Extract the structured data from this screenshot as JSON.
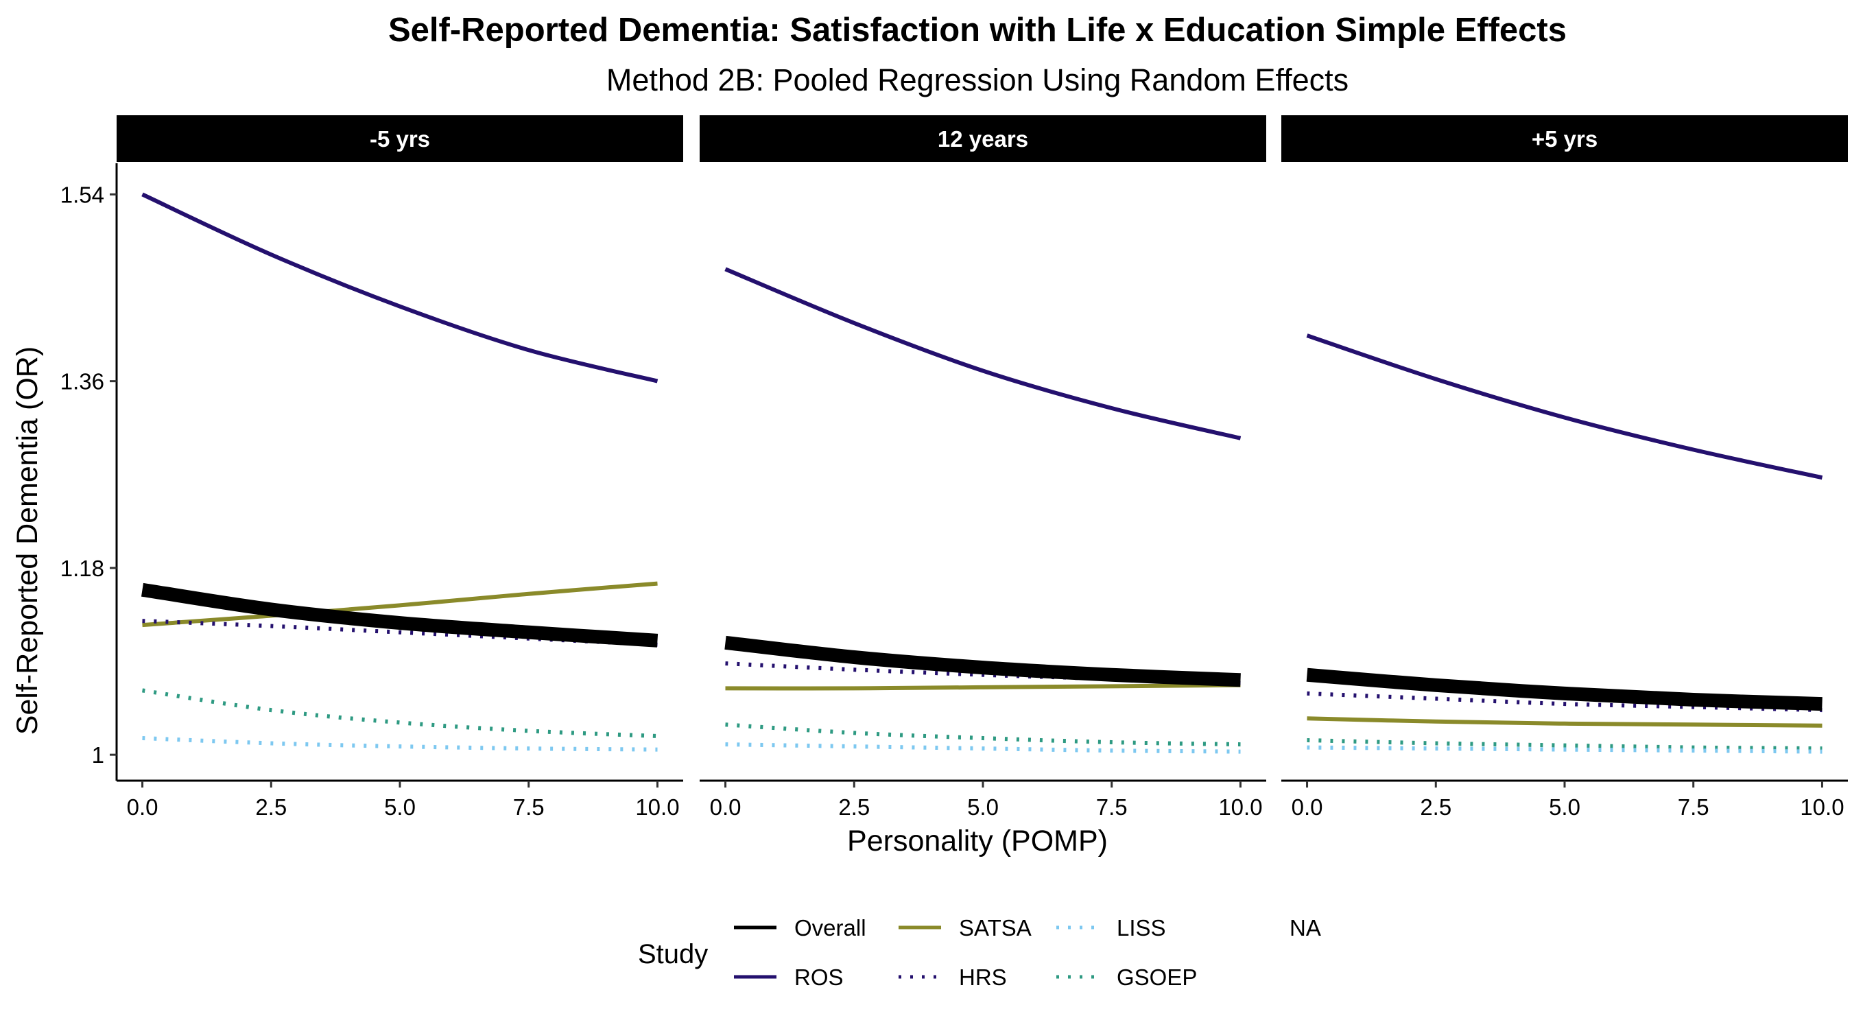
{
  "chart_data": {
    "type": "line",
    "title": "Self-Reported Dementia: Satisfaction with Life x Education Simple Effects",
    "subtitle": "Method 2B: Pooled Regression Using Random Effects",
    "xlabel": "Personality (POMP)",
    "ylabel": "Self-Reported Dementia (OR)",
    "x_ticks": [
      "0.0",
      "2.5",
      "5.0",
      "7.5",
      "10.0"
    ],
    "y_ticks": [
      "1",
      "1.18",
      "1.36",
      "1.54"
    ],
    "xlim": [
      -0.5,
      10.5
    ],
    "ylim": [
      0.975,
      1.57
    ],
    "grid": false,
    "legend_title": "Study",
    "legend_position": "bottom",
    "legend_items": [
      {
        "label": "Overall",
        "color": "#000000",
        "dash": "solid",
        "width": "thick"
      },
      {
        "label": "ROS",
        "color": "#24106E",
        "dash": "solid",
        "width": "normal"
      },
      {
        "label": "SATSA",
        "color": "#8A8A2A",
        "dash": "solid",
        "width": "normal"
      },
      {
        "label": "HRS",
        "color": "#24106E",
        "dash": "dotted",
        "width": "normal"
      },
      {
        "label": "LISS",
        "color": "#7DC8F0",
        "dash": "dotted",
        "width": "normal"
      },
      {
        "label": "GSOEP",
        "color": "#2E9A82",
        "dash": "dotted",
        "width": "normal"
      },
      {
        "label": "NA",
        "color": "",
        "dash": "none",
        "width": "none"
      }
    ],
    "panels": [
      {
        "label": "-5 yrs",
        "x": [
          0,
          2.5,
          5,
          7.5,
          10
        ],
        "series": [
          {
            "name": "ROS",
            "values": [
              1.54,
              1.482,
              1.432,
              1.39,
              1.36
            ]
          },
          {
            "name": "SATSA",
            "values": [
              1.125,
              1.134,
              1.144,
              1.155,
              1.165
            ]
          },
          {
            "name": "HRS",
            "values": [
              1.129,
              1.124,
              1.118,
              1.112,
              1.106
            ]
          },
          {
            "name": "GSOEP",
            "values": [
              1.062,
              1.043,
              1.031,
              1.023,
              1.018
            ]
          },
          {
            "name": "LISS",
            "values": [
              1.016,
              1.011,
              1.008,
              1.006,
              1.005
            ]
          },
          {
            "name": "Overall",
            "values": [
              1.159,
              1.14,
              1.127,
              1.118,
              1.11
            ]
          }
        ]
      },
      {
        "label": "12 years",
        "x": [
          0,
          2.5,
          5,
          7.5,
          10
        ],
        "series": [
          {
            "name": "ROS",
            "values": [
              1.468,
              1.416,
              1.37,
              1.334,
              1.305
            ]
          },
          {
            "name": "SATSA",
            "values": [
              1.064,
              1.064,
              1.065,
              1.066,
              1.067
            ]
          },
          {
            "name": "HRS",
            "values": [
              1.088,
              1.082,
              1.077,
              1.073,
              1.069
            ]
          },
          {
            "name": "GSOEP",
            "values": [
              1.029,
              1.021,
              1.016,
              1.012,
              1.01
            ]
          },
          {
            "name": "LISS",
            "values": [
              1.01,
              1.008,
              1.006,
              1.004,
              1.003
            ]
          },
          {
            "name": "Overall",
            "values": [
              1.108,
              1.094,
              1.084,
              1.077,
              1.072
            ]
          }
        ]
      },
      {
        "label": "+5 yrs",
        "x": [
          0,
          2.5,
          5,
          7.5,
          10
        ],
        "series": [
          {
            "name": "ROS",
            "values": [
              1.404,
              1.362,
              1.325,
              1.294,
              1.267
            ]
          },
          {
            "name": "SATSA",
            "values": [
              1.035,
              1.032,
              1.03,
              1.029,
              1.028
            ]
          },
          {
            "name": "HRS",
            "values": [
              1.059,
              1.054,
              1.049,
              1.046,
              1.043
            ]
          },
          {
            "name": "GSOEP",
            "values": [
              1.014,
              1.011,
              1.009,
              1.007,
              1.006
            ]
          },
          {
            "name": "LISS",
            "values": [
              1.007,
              1.006,
              1.005,
              1.004,
              1.003
            ]
          },
          {
            "name": "Overall",
            "values": [
              1.077,
              1.067,
              1.059,
              1.053,
              1.049
            ]
          }
        ]
      }
    ]
  }
}
